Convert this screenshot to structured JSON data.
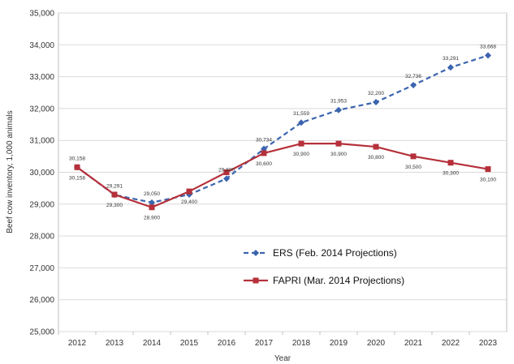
{
  "chart_data": {
    "type": "line",
    "xlabel": "Year",
    "ylabel": "Beef cow inventory, 1,000 animals",
    "categories": [
      "2012",
      "2013",
      "2014",
      "2015",
      "2016",
      "2017",
      "2018",
      "2019",
      "2020",
      "2021",
      "2022",
      "2023"
    ],
    "ylim": [
      25000,
      35000
    ],
    "yticks": [
      25000,
      26000,
      27000,
      28000,
      29000,
      30000,
      31000,
      32000,
      33000,
      34000,
      35000
    ],
    "ytick_labels": [
      "25,000",
      "26,000",
      "27,000",
      "28,000",
      "29,000",
      "30,000",
      "31,000",
      "32,000",
      "33,000",
      "34,000",
      "35,000"
    ],
    "grid": true,
    "legend_position": "center-right",
    "series": [
      {
        "name": "ERS (Feb. 2014 Projections)",
        "color": "#3b64ae",
        "style": "dashed",
        "marker": "diamond",
        "values": [
          30158,
          29291,
          29050,
          29300,
          29800,
          30734,
          31559,
          31953,
          32200,
          32736,
          33291,
          33668
        ],
        "labels": [
          "30,158",
          "29,291",
          "29,050",
          "",
          "29,800",
          "30,734",
          "31,559",
          "31,953",
          "32,200",
          "32,736",
          "33,291",
          "33,668"
        ]
      },
      {
        "name": "FAPRI (Mar. 2014 Projections)",
        "color": "#b5303a",
        "style": "solid",
        "marker": "square",
        "values": [
          30158,
          29300,
          28900,
          29400,
          30000,
          30600,
          30900,
          30900,
          30800,
          30500,
          30300,
          30100
        ],
        "labels": [
          "30,158",
          "29,300",
          "28,900",
          "29,400",
          "",
          "30,600",
          "30,900",
          "30,900",
          "30,800",
          "30,500",
          "30,300",
          "30,100"
        ]
      }
    ]
  }
}
